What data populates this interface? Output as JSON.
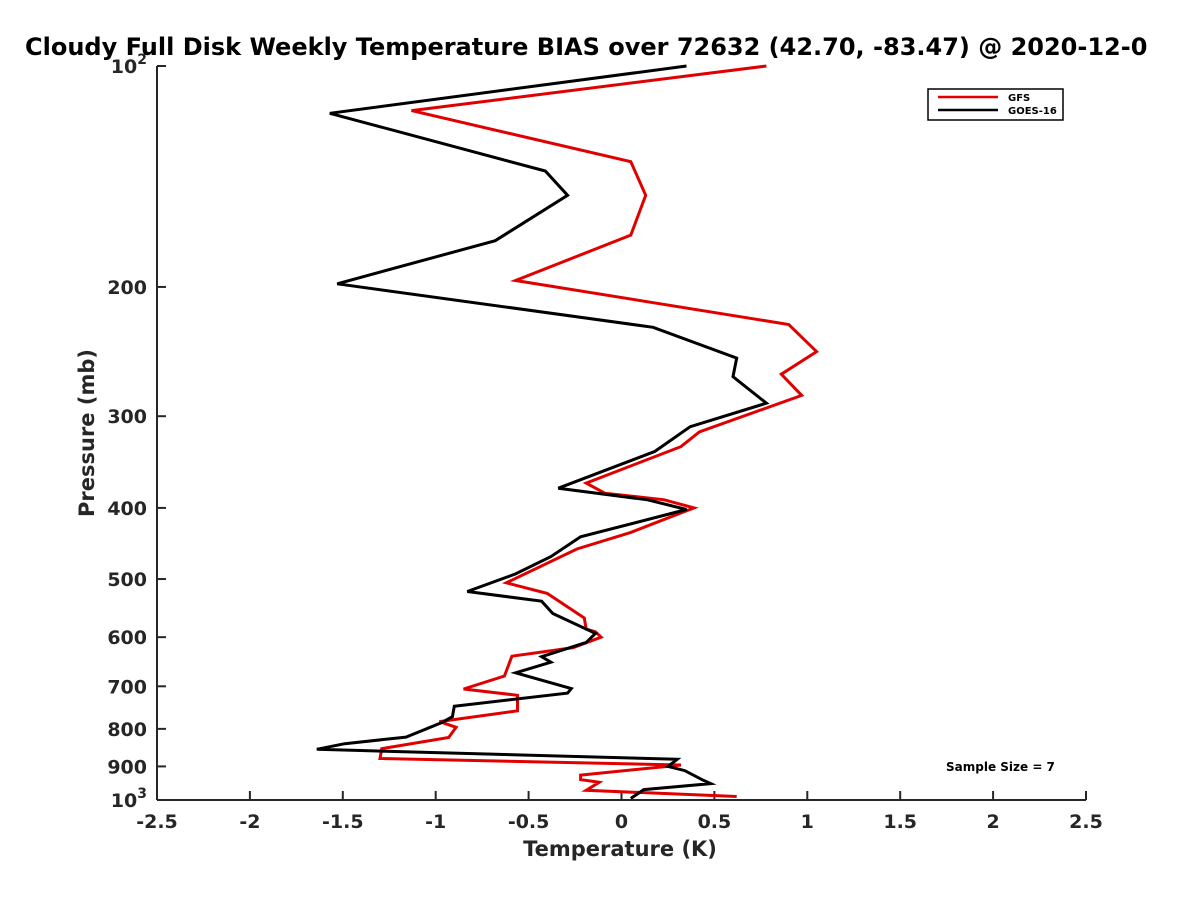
{
  "chart_data": {
    "type": "line",
    "title": "Cloudy Full Disk Weekly Temperature BIAS over 72632 (42.70, -83.47) @ 2020-12-0",
    "xlabel": "Temperature (K)",
    "ylabel": "Pressure (mb)",
    "xlim": [
      -2.5,
      2.5
    ],
    "ylim": [
      100,
      1000
    ],
    "y_scale": "log",
    "y_reversed": true,
    "grid": false,
    "legend_position": "top-right",
    "x_ticks": [
      "-2.5",
      "-2",
      "-1.5",
      "-1",
      "-0.5",
      "0",
      "0.5",
      "1",
      "1.5",
      "2",
      "2.5"
    ],
    "x_tick_values": [
      -2.5,
      -2,
      -1.5,
      -1,
      -0.5,
      0,
      0.5,
      1,
      1.5,
      2,
      2.5
    ],
    "y_ticks": [
      {
        "value": 100,
        "label": "10",
        "sup": "2"
      },
      {
        "value": 200,
        "label": "200"
      },
      {
        "value": 300,
        "label": "300"
      },
      {
        "value": 400,
        "label": "400"
      },
      {
        "value": 500,
        "label": "500"
      },
      {
        "value": 600,
        "label": "600"
      },
      {
        "value": 700,
        "label": "700"
      },
      {
        "value": 800,
        "label": "800"
      },
      {
        "value": 900,
        "label": "900"
      },
      {
        "value": 1000,
        "label": "10",
        "sup": "3"
      }
    ],
    "series": [
      {
        "name": "GFS",
        "color": "#e00000",
        "points": [
          [
            0.78,
            100
          ],
          [
            -1.13,
            115
          ],
          [
            0.05,
            135
          ],
          [
            0.13,
            150
          ],
          [
            0.05,
            170
          ],
          [
            -0.57,
            196
          ],
          [
            0.9,
            225
          ],
          [
            1.05,
            245
          ],
          [
            0.86,
            263
          ],
          [
            0.97,
            281
          ],
          [
            0.42,
            315
          ],
          [
            0.32,
            330
          ],
          [
            -0.19,
            370
          ],
          [
            -0.09,
            382
          ],
          [
            0.23,
            390
          ],
          [
            0.39,
            400
          ],
          [
            0.05,
            432
          ],
          [
            -0.24,
            455
          ],
          [
            -0.62,
            506
          ],
          [
            -0.4,
            523
          ],
          [
            -0.2,
            565
          ],
          [
            -0.19,
            585
          ],
          [
            -0.14,
            590
          ],
          [
            -0.11,
            600
          ],
          [
            -0.26,
            620
          ],
          [
            -0.59,
            637
          ],
          [
            -0.63,
            678
          ],
          [
            -0.85,
            706
          ],
          [
            -0.56,
            720
          ],
          [
            -0.56,
            756
          ],
          [
            -0.98,
            782
          ],
          [
            -0.89,
            796
          ],
          [
            -0.93,
            822
          ],
          [
            -1.29,
            851
          ],
          [
            -1.3,
            878
          ],
          [
            0.32,
            896
          ],
          [
            -0.22,
            925
          ],
          [
            -0.22,
            938
          ],
          [
            -0.12,
            946
          ],
          [
            -0.19,
            970
          ],
          [
            0.62,
            989
          ]
        ]
      },
      {
        "name": "GOES-16",
        "color": "#000000",
        "points": [
          [
            0.35,
            100
          ],
          [
            -1.57,
            116
          ],
          [
            -0.41,
            139
          ],
          [
            -0.29,
            150
          ],
          [
            -0.68,
            173
          ],
          [
            -1.53,
            198
          ],
          [
            0.17,
            227
          ],
          [
            0.62,
            250
          ],
          [
            0.6,
            265
          ],
          [
            0.78,
            288
          ],
          [
            0.37,
            310
          ],
          [
            0.18,
            335
          ],
          [
            -0.34,
            376
          ],
          [
            0.14,
            390
          ],
          [
            0.35,
            402
          ],
          [
            -0.22,
            438
          ],
          [
            -0.38,
            466
          ],
          [
            -0.57,
            492
          ],
          [
            -0.83,
            520
          ],
          [
            -0.43,
            536
          ],
          [
            -0.37,
            557
          ],
          [
            -0.14,
            593
          ],
          [
            -0.19,
            610
          ],
          [
            -0.43,
            638
          ],
          [
            -0.38,
            649
          ],
          [
            -0.57,
            671
          ],
          [
            -0.27,
            705
          ],
          [
            -0.29,
            715
          ],
          [
            -0.9,
            745
          ],
          [
            -0.91,
            770
          ],
          [
            -0.97,
            785
          ],
          [
            -1.16,
            821
          ],
          [
            -1.49,
            838
          ],
          [
            -1.64,
            853
          ],
          [
            0.3,
            880
          ],
          [
            0.25,
            900
          ],
          [
            0.34,
            912
          ],
          [
            0.44,
            940
          ],
          [
            0.48,
            950
          ],
          [
            0.12,
            968
          ],
          [
            0.05,
            995
          ]
        ]
      }
    ],
    "legend": [
      "GFS",
      "GOES-16"
    ],
    "annotations": [
      "Sample Size = 7"
    ]
  }
}
